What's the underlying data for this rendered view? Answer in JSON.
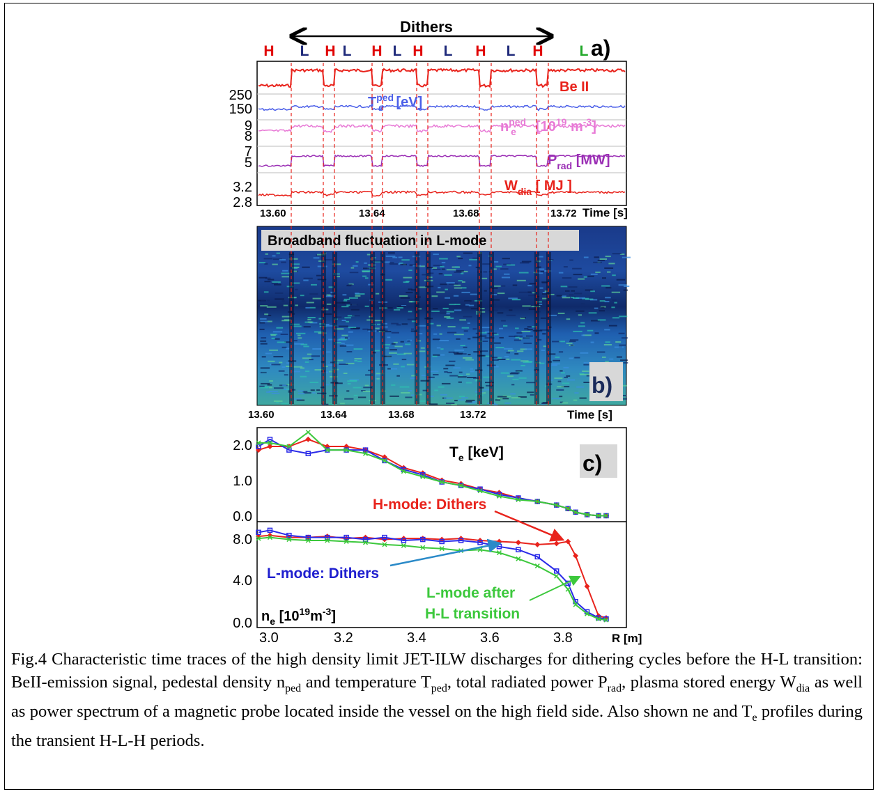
{
  "panel_a": {
    "label": "a)",
    "dithers_label": "Dithers",
    "modes": [
      {
        "text": "H",
        "color": "#e00000"
      },
      {
        "text": "L",
        "color": "#1f2a7a"
      },
      {
        "text": "H",
        "color": "#e00000"
      },
      {
        "text": "L",
        "color": "#1f2a7a"
      },
      {
        "text": "H",
        "color": "#e00000"
      },
      {
        "text": "L",
        "color": "#1f2a7a"
      },
      {
        "text": "H",
        "color": "#e00000"
      },
      {
        "text": "L",
        "color": "#1f2a7a"
      },
      {
        "text": "H",
        "color": "#e00000"
      },
      {
        "text": "L",
        "color": "#1f2a7a"
      },
      {
        "text": "H",
        "color": "#e00000"
      },
      {
        "text": "L",
        "color": "#22a82a"
      }
    ],
    "y_ticks": [
      "250",
      "150",
      "9",
      "8",
      "7",
      "5",
      "3.2",
      "2.8"
    ],
    "signal_labels": {
      "be": "Be II",
      "te_main": "T",
      "te_sub": "e",
      "te_sup": "ped",
      "te_unit": " [eV]",
      "ne_main": "n",
      "ne_sub": "e",
      "ne_sup": "ped",
      "ne_unit_a": "[10",
      "ne_unit_sup": "19",
      "ne_unit_b": " m",
      "ne_unit_sup2": "-3",
      "ne_unit_c": "]",
      "prad_main": "P",
      "prad_sub": "rad",
      "prad_unit": " [MW]",
      "wdia_main": "W",
      "wdia_sub": "dia",
      "wdia_unit": " [ MJ ]"
    },
    "x_ticks": [
      "13.60",
      "13.64",
      "13.68",
      "13.72"
    ],
    "x_label": "Time [s]",
    "colors": {
      "be": "#e8231c",
      "te": "#4a5ee8",
      "ne": "#e87ad6",
      "prad": "#9b2fb5",
      "wdia": "#e8231c"
    }
  },
  "panel_b": {
    "label": "b)",
    "banner": "Broadband fluctuation in L-mode",
    "x_ticks": [
      "13.60",
      "13.64",
      "13.68",
      "13.72"
    ],
    "x_label": "Time [s]"
  },
  "panel_c": {
    "label": "c)",
    "te_label_main": "T",
    "te_label_sub": "e",
    "te_label_unit": " [keV]",
    "te_y_ticks": [
      "2.0",
      "1.0",
      "0.0"
    ],
    "ne_y_ticks": [
      "8.0",
      "4.0",
      "0.0"
    ],
    "ne_label_main": "n",
    "ne_label_sub": "e",
    "ne_label_unit_a": " [10",
    "ne_label_sup": "19",
    "ne_label_unit_b": "m",
    "ne_label_sup2": "-3",
    "ne_label_unit_c": "]",
    "x_ticks": [
      "3.0",
      "3.2",
      "3.4",
      "3.6",
      "3.8"
    ],
    "x_label": "R [m]",
    "annotations": {
      "h_dithers": "H-mode: Dithers",
      "l_dithers": "L-mode: Dithers",
      "l_after_1": "L-mode after",
      "l_after_2": "H-L transition"
    },
    "colors": {
      "h": "#e8231c",
      "l": "#2a2ae8",
      "after": "#3cc83c"
    }
  },
  "chart_data": {
    "type": "line",
    "x": [
      2.97,
      3.0,
      3.05,
      3.1,
      3.15,
      3.2,
      3.25,
      3.3,
      3.35,
      3.4,
      3.45,
      3.5,
      3.55,
      3.6,
      3.65,
      3.7,
      3.75,
      3.78,
      3.8,
      3.83,
      3.86,
      3.88
    ],
    "series": [
      {
        "name": "H-mode: Dithers",
        "te": [
          1.9,
          2.0,
          2.0,
          2.2,
          2.0,
          2.0,
          1.9,
          1.7,
          1.4,
          1.25,
          1.05,
          0.95,
          0.8,
          0.7,
          0.55,
          0.45,
          0.35,
          0.25,
          0.15,
          0.08,
          0.05,
          0.05
        ],
        "ne": [
          8.4,
          8.5,
          8.3,
          8.3,
          8.4,
          8.2,
          8.3,
          8.1,
          8.2,
          8.2,
          8.1,
          8.2,
          8.0,
          7.9,
          7.8,
          7.6,
          7.7,
          7.9,
          6.5,
          3.5,
          0.6,
          0.4
        ]
      },
      {
        "name": "L-mode: Dithers",
        "te": [
          2.0,
          2.2,
          1.9,
          1.8,
          1.9,
          1.9,
          1.9,
          1.6,
          1.35,
          1.2,
          1.0,
          0.9,
          0.8,
          0.65,
          0.55,
          0.45,
          0.35,
          0.25,
          0.15,
          0.08,
          0.05,
          0.05
        ],
        "ne": [
          8.8,
          9.0,
          8.5,
          8.3,
          8.3,
          8.3,
          8.1,
          8.3,
          8.0,
          8.1,
          7.9,
          8.0,
          7.8,
          7.4,
          7.1,
          6.4,
          5.0,
          3.8,
          2.0,
          1.0,
          0.4,
          0.3
        ]
      },
      {
        "name": "L-mode after H-L transition",
        "te": [
          2.1,
          2.1,
          2.0,
          2.4,
          1.9,
          1.9,
          1.8,
          1.6,
          1.3,
          1.15,
          1.0,
          0.9,
          0.75,
          0.6,
          0.5,
          0.45,
          0.35,
          0.25,
          0.15,
          0.08,
          0.05,
          0.05
        ],
        "ne": [
          8.2,
          8.3,
          8.1,
          8.0,
          8.0,
          7.9,
          7.8,
          7.6,
          7.5,
          7.3,
          7.2,
          7.0,
          7.1,
          6.8,
          6.2,
          5.5,
          4.5,
          3.2,
          1.7,
          0.8,
          0.3,
          0.2
        ]
      }
    ],
    "xlabel": "R [m]",
    "te_ylim": [
      0,
      2.4
    ],
    "ne_ylim": [
      0,
      9.5
    ]
  },
  "caption": {
    "p1": "Fig.4 Characteristic time traces of the high density limit JET-ILW discharges for dithering cycles before the H-L transition: BeII-emission signal, pedestal density n",
    "s1": "ped",
    "p2": " and temperature T",
    "s2": "ped",
    "p3": ", total radiated power P",
    "s3": "rad",
    "p4": ", plasma stored energy W",
    "s4": "dia",
    "p5": " as well as power spectrum of a magnetic probe located inside the vessel on the high field side. Also shown ne and T",
    "s5": "e",
    "p6": " profiles during the transient H-L-H periods."
  }
}
